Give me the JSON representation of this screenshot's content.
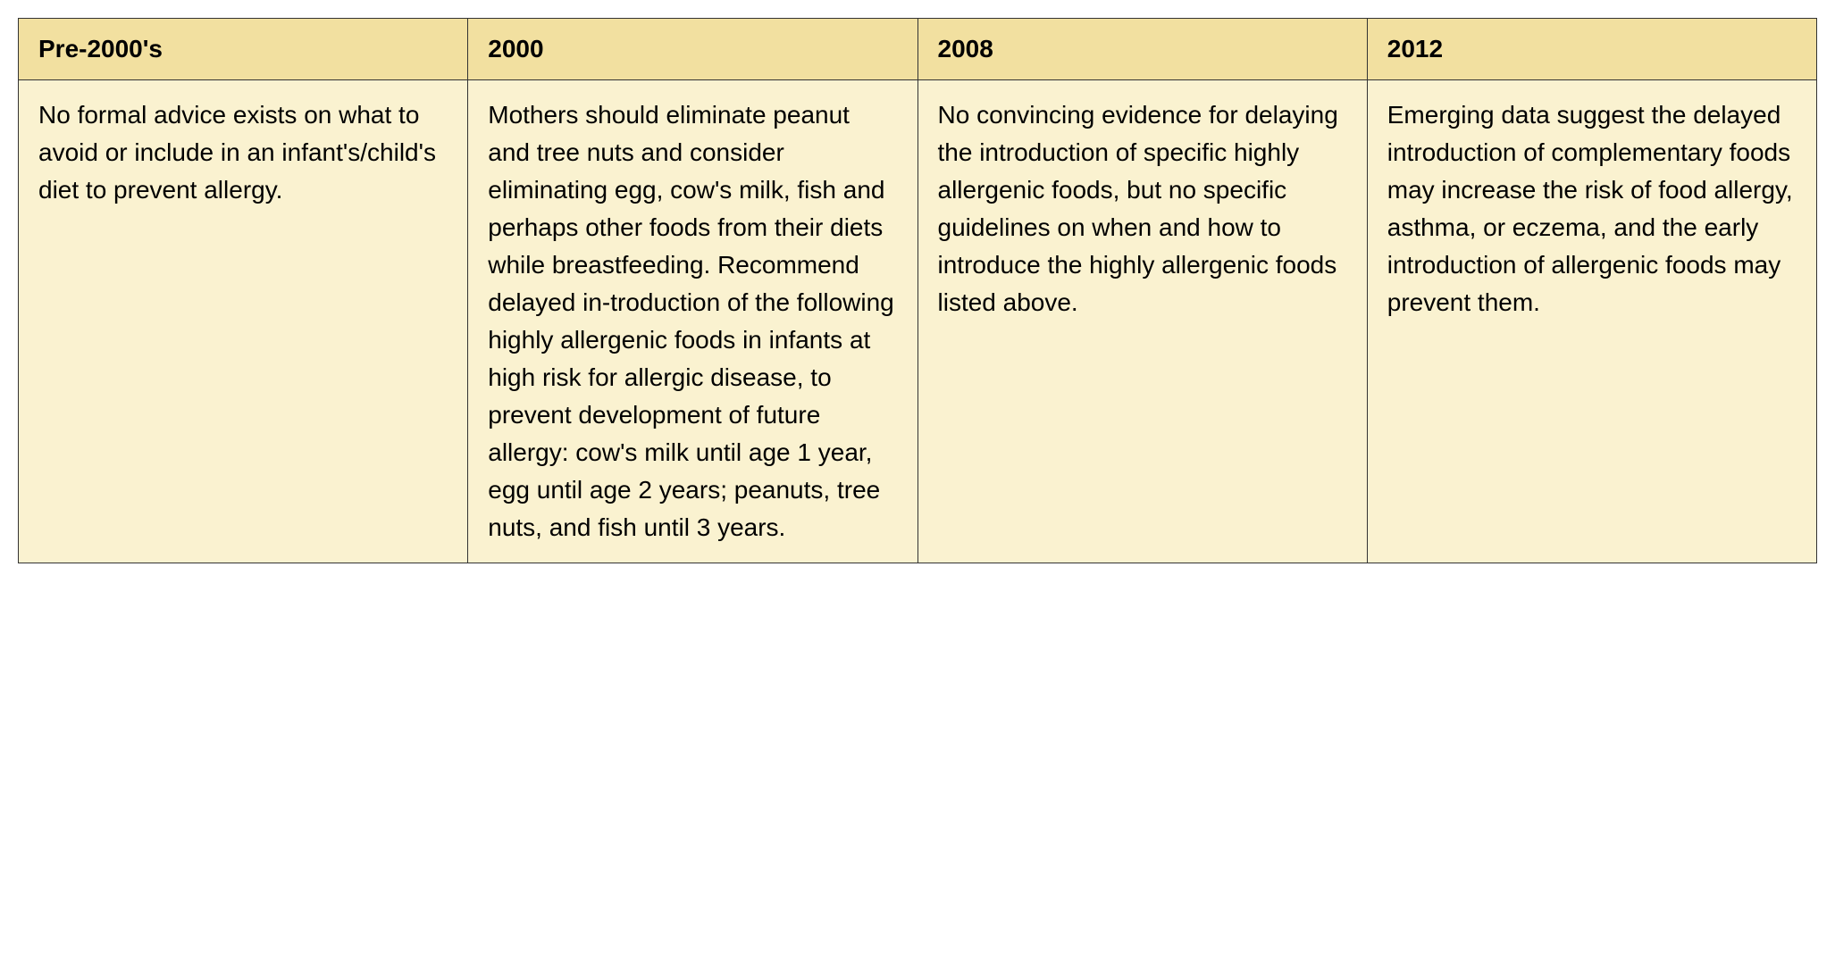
{
  "table": {
    "header_bg": "#f2e0a0",
    "body_bg": "#faf2d0",
    "border_color": "#333333",
    "columns": [
      {
        "label": "Pre-2000's"
      },
      {
        "label": "2000"
      },
      {
        "label": "2008"
      },
      {
        "label": "2012"
      }
    ],
    "rows": [
      [
        "No formal advice exists on what to avoid or include in an infant's/child's diet to prevent allergy.",
        "Mothers should eliminate peanut and tree nuts and consider eliminating egg, cow's milk, fish and perhaps other foods from their diets while breastfeeding. Recommend delayed in-troduction of the following highly allergenic foods in infants at high risk for allergic disease, to prevent development of future allergy: cow's milk until age 1 year, egg until age 2 years; peanuts, tree nuts, and fish until 3 years.",
        "No convincing evidence for delaying the introduction of specific highly allergenic foods, but no specific guidelines on when and how to introduce the highly allergenic foods listed above.",
        "Emerging data suggest the delayed introduction of complementary foods may increase the risk of food allergy, asthma, or eczema, and the early introduction of allergenic foods may prevent them."
      ]
    ],
    "header_fontsize": 28,
    "body_fontsize": 28,
    "line_height": 1.5
  }
}
